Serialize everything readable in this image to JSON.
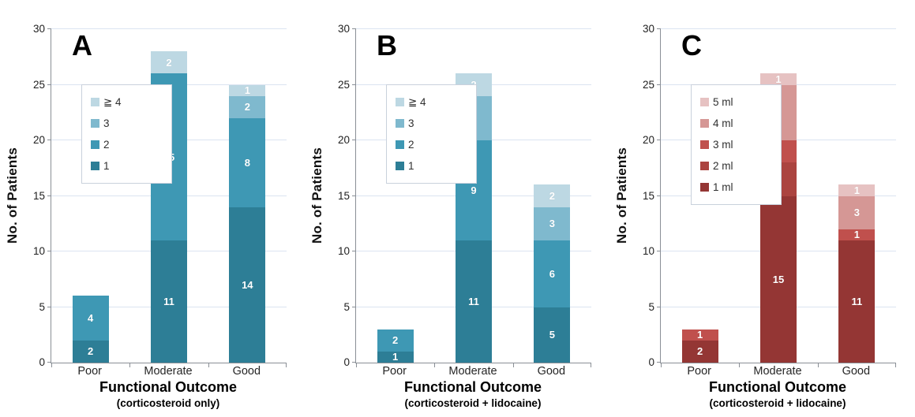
{
  "chart_data": [
    {
      "type": "bar",
      "stacked": true,
      "panel_label": "A",
      "ylabel": "No. of Patients",
      "xlabel": "Functional Outcome",
      "subtitle": "(corticosteroid only)",
      "ylim": [
        0,
        30
      ],
      "ytick_step": 5,
      "grid": true,
      "legend_position": "upper-left-inside",
      "categories": [
        "Poor",
        "Moderate",
        "Good"
      ],
      "series": [
        {
          "name": "1",
          "color": "#2d7e96",
          "values": [
            2,
            11,
            14
          ]
        },
        {
          "name": "2",
          "color": "#3e98b4",
          "values": [
            4,
            15,
            8
          ]
        },
        {
          "name": "3",
          "color": "#7fb9ce",
          "values": [
            0,
            0,
            2
          ]
        },
        {
          "name": "≧ 4",
          "color": "#bdd8e3",
          "values": [
            0,
            2,
            1
          ]
        }
      ]
    },
    {
      "type": "bar",
      "stacked": true,
      "panel_label": "B",
      "ylabel": "No. of Patients",
      "xlabel": "Functional Outcome",
      "subtitle": "(corticosteroid + lidocaine)",
      "ylim": [
        0,
        30
      ],
      "ytick_step": 5,
      "grid": true,
      "legend_position": "upper-left-inside",
      "categories": [
        "Poor",
        "Moderate",
        "Good"
      ],
      "series": [
        {
          "name": "1",
          "color": "#2d7e96",
          "values": [
            1,
            11,
            5
          ]
        },
        {
          "name": "2",
          "color": "#3e98b4",
          "values": [
            2,
            9,
            6
          ]
        },
        {
          "name": "3",
          "color": "#7fb9ce",
          "values": [
            0,
            4,
            3
          ]
        },
        {
          "name": "≧ 4",
          "color": "#bdd8e3",
          "values": [
            0,
            2,
            2
          ]
        }
      ]
    },
    {
      "type": "bar",
      "stacked": true,
      "panel_label": "C",
      "ylabel": "No. of Patients",
      "xlabel": "Functional Outcome",
      "subtitle": "(corticosteroid + lidocaine)",
      "ylim": [
        0,
        30
      ],
      "ytick_step": 5,
      "grid": true,
      "legend_position": "upper-left-inside",
      "categories": [
        "Poor",
        "Moderate",
        "Good"
      ],
      "series": [
        {
          "name": "1 ml",
          "color": "#943634",
          "values": [
            2,
            15,
            11
          ]
        },
        {
          "name": "2 ml",
          "color": "#ab4440",
          "values": [
            0,
            3,
            0
          ]
        },
        {
          "name": "3 ml",
          "color": "#c0504d",
          "values": [
            1,
            2,
            1
          ]
        },
        {
          "name": "4 ml",
          "color": "#d59795",
          "values": [
            0,
            5,
            3
          ]
        },
        {
          "name": "5 ml",
          "color": "#e6c2c2",
          "values": [
            0,
            1,
            1
          ]
        }
      ]
    }
  ]
}
